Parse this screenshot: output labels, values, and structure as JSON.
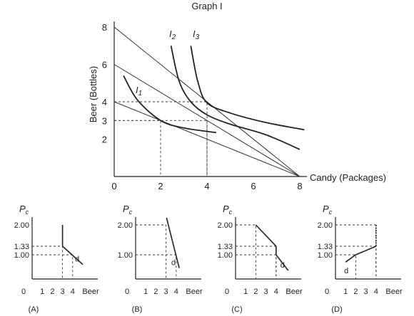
{
  "chart_data": [
    {
      "type": "line",
      "title": "Graph I",
      "xlabel": "Candy (Packages)",
      "ylabel": "Beer (Bottles)",
      "xlim": [
        0,
        8
      ],
      "ylim": [
        0,
        8
      ],
      "x_ticks": [
        "0",
        "2",
        "4",
        "6",
        "8"
      ],
      "y_ticks": [
        "2",
        "3",
        "4",
        "6",
        "8"
      ],
      "budget_lines": [
        {
          "points": [
            [
              0,
              8
            ],
            [
              8,
              0
            ]
          ]
        },
        {
          "points": [
            [
              0,
              6
            ],
            [
              8,
              0
            ]
          ]
        },
        {
          "points": [
            [
              0,
              4
            ],
            [
              8,
              0
            ]
          ]
        }
      ],
      "series": [
        {
          "name": "I1",
          "label": "I",
          "sub": "1",
          "x": [
            0.4,
            1.0,
            2.0,
            3.0,
            4.4
          ],
          "y": [
            5.4,
            4.1,
            3.0,
            2.6,
            2.35
          ]
        },
        {
          "name": "I2",
          "label": "I",
          "sub": "2",
          "x": [
            2.45,
            2.8,
            3.3,
            4.0,
            5.0,
            6.5,
            8.0
          ],
          "y": [
            7.0,
            5.1,
            4.0,
            3.3,
            2.8,
            2.25,
            1.45
          ]
        },
        {
          "name": "I3",
          "label": "I",
          "sub": "3",
          "x": [
            3.3,
            3.6,
            4.0,
            5.0,
            6.5,
            8.2
          ],
          "y": [
            7.0,
            5.1,
            3.95,
            3.4,
            2.9,
            2.5
          ]
        }
      ],
      "reference_points": [
        [
          2,
          3
        ],
        [
          4,
          3
        ],
        [
          4,
          4
        ]
      ]
    },
    {
      "type": "line",
      "panel_label": "(A)",
      "ylabel": "P",
      "ylabel_sub": "c",
      "x_ticks": [
        "0",
        "1",
        "2",
        "3",
        "4"
      ],
      "xlabel": "Beer",
      "y_ticks": [
        "1.00",
        "1.33",
        "2.00"
      ],
      "xlim": [
        0,
        5.5
      ],
      "ylim": [
        0,
        2.5
      ],
      "demand": [
        [
          3,
          2.0
        ],
        [
          3,
          1.33
        ],
        [
          5.0,
          0.6
        ]
      ],
      "guides": [
        [
          3,
          1.33
        ],
        [
          4,
          1.0
        ]
      ],
      "curve_label": "d"
    },
    {
      "type": "line",
      "panel_label": "(B)",
      "ylabel": "P",
      "ylabel_sub": "c",
      "x_ticks": [
        "0",
        "1",
        "2",
        "3",
        "4"
      ],
      "xlabel": "Beer",
      "y_ticks": [
        "1.00",
        "2.00"
      ],
      "xlim": [
        0,
        5.5
      ],
      "ylim": [
        0,
        2.5
      ],
      "demand": [
        [
          3.05,
          2.25
        ],
        [
          4.3,
          0.45
        ]
      ],
      "guides": [
        [
          3,
          2.0
        ],
        [
          4,
          1.0
        ]
      ],
      "curve_label": "d"
    },
    {
      "type": "line",
      "panel_label": "(C)",
      "ylabel": "P",
      "ylabel_sub": "c",
      "x_ticks": [
        "0",
        "1",
        "2",
        "3",
        "4"
      ],
      "xlabel": "Beer",
      "y_ticks": [
        "1.00",
        "1.33",
        "2.00"
      ],
      "xlim": [
        0,
        5.5
      ],
      "ylim": [
        0,
        2.5
      ],
      "demand": [
        [
          2,
          2.0
        ],
        [
          4,
          1.33
        ],
        [
          4,
          1.0
        ],
        [
          5.2,
          0.35
        ]
      ],
      "guides": [
        [
          2,
          2.0
        ],
        [
          4,
          1.33
        ],
        [
          4,
          1.0
        ]
      ],
      "curve_label": "d"
    },
    {
      "type": "line",
      "panel_label": "(D)",
      "ylabel": "P",
      "ylabel_sub": "c",
      "x_ticks": [
        "0",
        "1",
        "2",
        "3",
        "4"
      ],
      "xlabel": "Beer",
      "y_ticks": [
        "1.00",
        "1.33",
        "2.00"
      ],
      "xlim": [
        0,
        5.5
      ],
      "ylim": [
        0,
        2.5
      ],
      "demand": [
        [
          1,
          0.7
        ],
        [
          2,
          1.0
        ],
        [
          4,
          1.33
        ],
        [
          4,
          2.0
        ]
      ],
      "guides": [
        [
          2,
          1.0
        ],
        [
          4,
          1.33
        ],
        [
          4,
          2.0
        ]
      ],
      "dashed_upper": true,
      "curve_label": "d"
    }
  ]
}
